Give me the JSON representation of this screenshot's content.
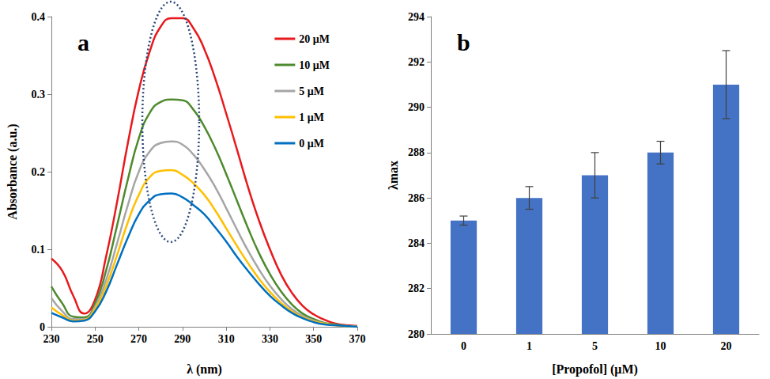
{
  "chart_data": [
    {
      "type": "line",
      "title": "a",
      "xlabel": "λ (nm)",
      "ylabel": "Absorbance (a.u.)",
      "x": [
        230,
        235,
        240,
        245,
        250,
        255,
        260,
        265,
        270,
        275,
        280,
        285,
        290,
        295,
        300,
        305,
        310,
        315,
        320,
        325,
        330,
        335,
        340,
        345,
        350,
        355,
        360,
        365,
        370
      ],
      "series": [
        {
          "name": "20 μM",
          "color": "#e8191d",
          "values": [
            0.088,
            0.072,
            0.04,
            0.017,
            0.035,
            0.09,
            0.16,
            0.237,
            0.305,
            0.355,
            0.387,
            0.398,
            0.398,
            0.385,
            0.358,
            0.32,
            0.275,
            0.228,
            0.18,
            0.137,
            0.1,
            0.068,
            0.044,
            0.027,
            0.016,
            0.009,
            0.004,
            0.002,
            0.001
          ]
        },
        {
          "name": "10 μM",
          "color": "#4e8a2e",
          "values": [
            0.052,
            0.03,
            0.013,
            0.012,
            0.03,
            0.072,
            0.13,
            0.19,
            0.243,
            0.276,
            0.29,
            0.293,
            0.292,
            0.28,
            0.258,
            0.23,
            0.197,
            0.162,
            0.127,
            0.095,
            0.068,
            0.046,
            0.029,
            0.017,
            0.01,
            0.005,
            0.003,
            0.001,
            0
          ]
        },
        {
          "name": "5 μM",
          "color": "#a6a6a6",
          "values": [
            0.037,
            0.02,
            0.01,
            0.01,
            0.026,
            0.06,
            0.107,
            0.157,
            0.2,
            0.226,
            0.237,
            0.239,
            0.235,
            0.222,
            0.203,
            0.18,
            0.153,
            0.125,
            0.098,
            0.074,
            0.053,
            0.036,
            0.023,
            0.014,
            0.008,
            0.004,
            0.002,
            0.001,
            0
          ]
        },
        {
          "name": "1 μM",
          "color": "#ffc000",
          "values": [
            0.025,
            0.015,
            0.008,
            0.009,
            0.023,
            0.052,
            0.092,
            0.135,
            0.17,
            0.193,
            0.201,
            0.202,
            0.196,
            0.185,
            0.17,
            0.15,
            0.127,
            0.104,
            0.082,
            0.062,
            0.045,
            0.031,
            0.02,
            0.012,
            0.007,
            0.004,
            0.002,
            0.001,
            0
          ]
        },
        {
          "name": "0 μM",
          "color": "#0070c0",
          "values": [
            0.018,
            0.012,
            0.007,
            0.008,
            0.02,
            0.045,
            0.08,
            0.115,
            0.145,
            0.163,
            0.171,
            0.172,
            0.167,
            0.157,
            0.145,
            0.128,
            0.11,
            0.09,
            0.072,
            0.055,
            0.04,
            0.028,
            0.018,
            0.011,
            0.006,
            0.003,
            0.002,
            0.001,
            0
          ]
        }
      ],
      "xlim": [
        230,
        370
      ],
      "xticks": [
        230,
        250,
        270,
        290,
        310,
        330,
        350,
        370
      ],
      "ylim": [
        0,
        0.4
      ],
      "yticks": [
        0,
        0.1,
        0.2,
        0.3,
        0.4
      ],
      "legend": "upper right",
      "grid": false
    },
    {
      "type": "bar",
      "title": "b",
      "xlabel": "[Propofol] (μM)",
      "ylabel": "λmax",
      "categories": [
        "0",
        "1",
        "5",
        "10",
        "20"
      ],
      "values": [
        285,
        286,
        287,
        288,
        291
      ],
      "errors": [
        0.2,
        0.5,
        1,
        0.5,
        1.5
      ],
      "color": "#4472c4",
      "ylim": [
        280,
        294
      ],
      "yticks": [
        280,
        282,
        284,
        286,
        288,
        290,
        292,
        294
      ],
      "grid": false
    }
  ]
}
